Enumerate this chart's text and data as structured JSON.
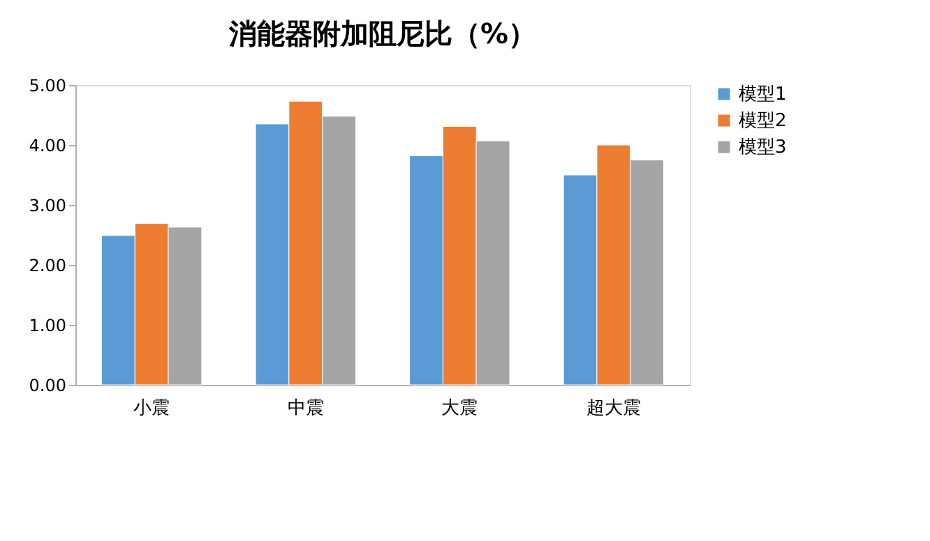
{
  "chart_data": {
    "type": "bar",
    "title": "消能器附加阻尼比（%）",
    "categories": [
      "小震",
      "中震",
      "大震",
      "超大震"
    ],
    "series": [
      {
        "name": "模型1",
        "color": "#5b9bd5",
        "values": [
          2.49,
          4.35,
          3.82,
          3.5
        ]
      },
      {
        "name": "模型2",
        "color": "#ed7d31",
        "values": [
          2.69,
          4.73,
          4.31,
          4.0
        ]
      },
      {
        "name": "模型3",
        "color": "#a5a5a5",
        "values": [
          2.63,
          4.48,
          4.07,
          3.75
        ]
      }
    ],
    "ylim": [
      0,
      5
    ],
    "yticks": [
      {
        "value": 0,
        "label": "0.00"
      },
      {
        "value": 1,
        "label": "1.00"
      },
      {
        "value": 2,
        "label": "2.00"
      },
      {
        "value": 3,
        "label": "3.00"
      },
      {
        "value": 4,
        "label": "4.00"
      },
      {
        "value": 5,
        "label": "5.00"
      }
    ],
    "grid": false,
    "legend": "right"
  }
}
